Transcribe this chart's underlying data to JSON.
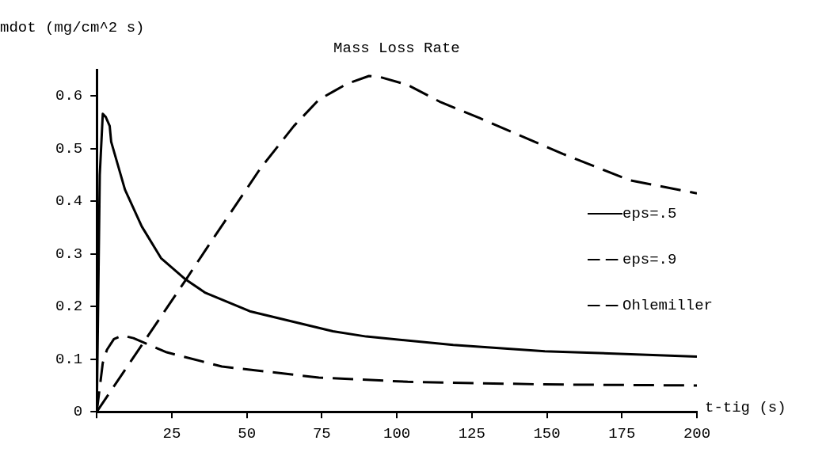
{
  "chart_data": {
    "type": "line",
    "title": "Mass Loss Rate",
    "xlabel": "t-tig (s)",
    "ylabel": "mdot (mg/cm^2 s)",
    "xlim": [
      0,
      200
    ],
    "ylim": [
      0,
      0.65
    ],
    "xticks": [
      {
        "value": 0,
        "label": null
      },
      25,
      50,
      75,
      100,
      125,
      150,
      175,
      200
    ],
    "yticks": [
      0,
      0.1,
      0.2,
      0.3,
      0.4,
      0.5,
      0.6
    ],
    "grid": false,
    "legend": "right",
    "marker": "none",
    "series": [
      {
        "name": "eps=.5",
        "color": "#000000",
        "line_style": "solid",
        "x": [
          0,
          1,
          2,
          3,
          4.3,
          4.8,
          9.4,
          15,
          21.4,
          29.7,
          36.2,
          51,
          78.7,
          89.8,
          118.8,
          149.3,
          200
        ],
        "values": [
          0,
          0.45,
          0.566,
          0.56,
          0.543,
          0.513,
          0.422,
          0.352,
          0.292,
          0.251,
          0.226,
          0.191,
          0.153,
          0.143,
          0.127,
          0.115,
          0.105
        ]
      },
      {
        "name": "eps=.9",
        "color": "#000000",
        "line_style": "dashed",
        "x": [
          0,
          2,
          3.4,
          5.7,
          8.5,
          12.2,
          23.3,
          41.7,
          74,
          103.6,
          149,
          200
        ],
        "values": [
          0,
          0.093,
          0.118,
          0.138,
          0.145,
          0.14,
          0.113,
          0.086,
          0.065,
          0.057,
          0.052,
          0.05
        ]
      },
      {
        "name": "Ohlemiller",
        "color": "#000000",
        "line_style": "dashed",
        "x": [
          0,
          29.7,
          36.2,
          54.6,
          65.7,
          74,
          78.7,
          83.3,
          90.7,
          94.4,
          103.6,
          114.7,
          127.6,
          155.3,
          177.5,
          200
        ],
        "values": [
          0,
          0.251,
          0.307,
          0.463,
          0.543,
          0.593,
          0.608,
          0.623,
          0.638,
          0.636,
          0.621,
          0.588,
          0.558,
          0.49,
          0.44,
          0.415
        ]
      }
    ]
  }
}
